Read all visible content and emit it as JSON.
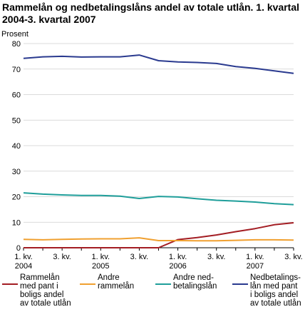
{
  "chart_data": {
    "type": "line",
    "title": "Rammelån og nedbetalingslåns andel av totale utlån. 1. kvartal 2004-3. kvartal 2007",
    "ylabel": "Prosent",
    "xlabel": "",
    "ylim": [
      0,
      80
    ],
    "yticks": [
      "0",
      "10",
      "20",
      "30",
      "40",
      "50",
      "60",
      "70",
      "80"
    ],
    "grid": true,
    "legend_position": "bottom",
    "x": [
      "1. kv. 2004",
      "2. kv. 2004",
      "3. kv. 2004",
      "4. kv. 2004",
      "1. kv. 2005",
      "2. kv. 2005",
      "3. kv. 2005",
      "4. kv. 2005",
      "1. kv. 2006",
      "2. kv. 2006",
      "3. kv. 2006",
      "4. kv. 2006",
      "1. kv. 2007",
      "2. kv. 2007",
      "3. kv. 2007"
    ],
    "tick_labels": [
      {
        "index": 0,
        "line1": "1. kv.",
        "line2": "2004"
      },
      {
        "index": 2,
        "line1": "3. kv.",
        "line2": ""
      },
      {
        "index": 4,
        "line1": "1. kv.",
        "line2": "2005"
      },
      {
        "index": 6,
        "line1": "3. kv.",
        "line2": ""
      },
      {
        "index": 8,
        "line1": "1. kv.",
        "line2": "2006"
      },
      {
        "index": 10,
        "line1": "3. kv.",
        "line2": ""
      },
      {
        "index": 12,
        "line1": "1. kv.",
        "line2": "2007"
      },
      {
        "index": 14,
        "line1": "3. kv.",
        "line2": ""
      }
    ],
    "series": [
      {
        "name": "Rammelån med pant i boligs andel av totale utlån",
        "color": "#a31d23",
        "values": [
          0,
          0,
          0,
          0,
          0,
          0,
          0,
          0,
          3.2,
          4.0,
          5.0,
          6.3,
          7.5,
          9.0,
          9.8
        ]
      },
      {
        "name": "Andre rammelån",
        "color": "#f0a030",
        "values": [
          3.3,
          3.1,
          3.3,
          3.4,
          3.5,
          3.5,
          3.9,
          2.8,
          2.8,
          2.7,
          2.7,
          2.9,
          3.1,
          3.1,
          3.0
        ]
      },
      {
        "name": "Andre nedbetalingslån",
        "color": "#1f9e9a",
        "values": [
          21.5,
          21.0,
          20.7,
          20.5,
          20.5,
          20.2,
          19.3,
          20.1,
          19.9,
          19.2,
          18.6,
          18.3,
          17.9,
          17.3,
          16.9
        ]
      },
      {
        "name": "Nedbetalingslån med pant i boligs andel av totale utlån",
        "color": "#2a3a8f",
        "values": [
          74.2,
          74.8,
          75.0,
          74.7,
          74.8,
          74.8,
          75.5,
          73.3,
          72.8,
          72.6,
          72.2,
          71.0,
          70.3,
          69.3,
          68.3
        ]
      }
    ],
    "legend": [
      {
        "line1": "Rammelån",
        "line2": "med pant i",
        "line3": "boligs andel",
        "line4": "av totale utlån",
        "color": "#a31d23"
      },
      {
        "line1": "Andre",
        "line2": "rammelån",
        "line3": "",
        "line4": "",
        "color": "#f0a030"
      },
      {
        "line1": "Andre ned-",
        "line2": "betalingslån",
        "line3": "",
        "line4": "",
        "color": "#1f9e9a"
      },
      {
        "line1": "Nedbetalings-",
        "line2": "lån med pant",
        "line3": "i boligs andel",
        "line4": "av totale utlån",
        "color": "#2a3a8f"
      }
    ]
  }
}
